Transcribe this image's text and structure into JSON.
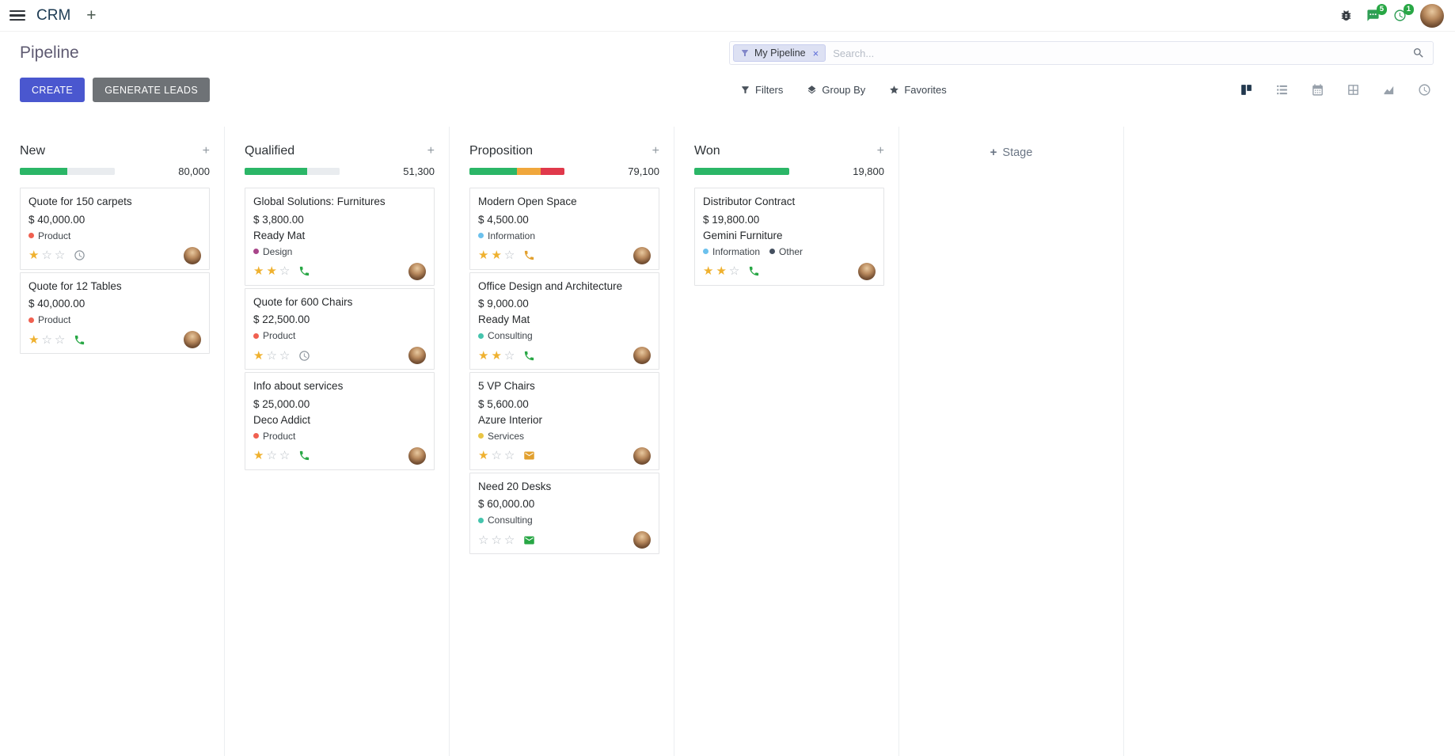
{
  "colors": {
    "primary": "#4a57cf",
    "secondary": "#6e7276",
    "success": "#28a745",
    "progress_green": "#2bb667",
    "progress_yellow": "#f0a73c",
    "progress_red": "#e0394b",
    "star_gold": "#efb12f",
    "tag_red": "#f06050",
    "tag_magenta": "#a8458a",
    "tag_blue": "#6cc1ed",
    "tag_teal": "#45c4ad",
    "tag_yellow": "#e9c546",
    "tag_dark": "#44505f",
    "facet_bg": "#dde1f3"
  },
  "icons": {
    "plus": "+",
    "close": "×",
    "star_filled": "★",
    "star_empty": "☆"
  },
  "navbar": {
    "app_name": "CRM",
    "messages_badge": "5",
    "activities_badge": "1"
  },
  "control_panel": {
    "title": "Pipeline",
    "buttons": {
      "create": "CREATE",
      "generate_leads": "GENERATE LEADS"
    },
    "search": {
      "facet_label": "My Pipeline",
      "placeholder": "Search..."
    },
    "menus": {
      "filters": "Filters",
      "group_by": "Group By",
      "favorites": "Favorites"
    }
  },
  "kanban": {
    "add_stage_label": "Stage",
    "columns": [
      {
        "name": "New",
        "count": "80,000",
        "progress": [
          {
            "color": "green",
            "pct": 50
          },
          {
            "color": "gray",
            "pct": 50
          }
        ],
        "cards": [
          {
            "title": "Quote for 150 carpets",
            "amount": "$ 40,000.00",
            "tags": [
              {
                "name": "Product",
                "color": "red"
              }
            ],
            "priority": 1,
            "activity": {
              "type": "clock",
              "state": "muted"
            }
          },
          {
            "title": "Quote for 12 Tables",
            "amount": "$ 40,000.00",
            "tags": [
              {
                "name": "Product",
                "color": "red"
              }
            ],
            "priority": 1,
            "activity": {
              "type": "phone",
              "state": "green"
            }
          }
        ]
      },
      {
        "name": "Qualified",
        "count": "51,300",
        "progress": [
          {
            "color": "green",
            "pct": 66
          },
          {
            "color": "gray",
            "pct": 34
          }
        ],
        "cards": [
          {
            "title": "Global Solutions: Furnitures",
            "amount": "$ 3,800.00",
            "partner": "Ready Mat",
            "tags": [
              {
                "name": "Design",
                "color": "magenta"
              }
            ],
            "priority": 2,
            "activity": {
              "type": "phone",
              "state": "green"
            }
          },
          {
            "title": "Quote for 600 Chairs",
            "amount": "$ 22,500.00",
            "tags": [
              {
                "name": "Product",
                "color": "red"
              }
            ],
            "priority": 1,
            "activity": {
              "type": "clock",
              "state": "muted"
            }
          },
          {
            "title": "Info about services",
            "amount": "$ 25,000.00",
            "partner": "Deco Addict",
            "tags": [
              {
                "name": "Product",
                "color": "red"
              }
            ],
            "priority": 1,
            "activity": {
              "type": "phone",
              "state": "green"
            }
          }
        ]
      },
      {
        "name": "Proposition",
        "count": "79,100",
        "progress": [
          {
            "color": "green",
            "pct": 50
          },
          {
            "color": "yellow",
            "pct": 25
          },
          {
            "color": "red",
            "pct": 25
          }
        ],
        "cards": [
          {
            "title": "Modern Open Space",
            "amount": "$ 4,500.00",
            "tags": [
              {
                "name": "Information",
                "color": "blue"
              }
            ],
            "priority": 2,
            "activity": {
              "type": "phone",
              "state": "orange"
            }
          },
          {
            "title": "Office Design and Architecture",
            "amount": "$ 9,000.00",
            "partner": "Ready Mat",
            "tags": [
              {
                "name": "Consulting",
                "color": "teal"
              }
            ],
            "priority": 2,
            "activity": {
              "type": "phone",
              "state": "green"
            }
          },
          {
            "title": "5 VP Chairs",
            "amount": "$ 5,600.00",
            "partner": "Azure Interior",
            "tags": [
              {
                "name": "Services",
                "color": "yellow"
              }
            ],
            "priority": 1,
            "activity": {
              "type": "envelope",
              "state": "orange"
            }
          },
          {
            "title": "Need 20 Desks",
            "amount": "$ 60,000.00",
            "tags": [
              {
                "name": "Consulting",
                "color": "teal"
              }
            ],
            "priority": 0,
            "activity": {
              "type": "envelope",
              "state": "green"
            }
          }
        ]
      },
      {
        "name": "Won",
        "count": "19,800",
        "progress": [
          {
            "color": "green",
            "pct": 100
          }
        ],
        "cards": [
          {
            "title": "Distributor Contract",
            "amount": "$ 19,800.00",
            "partner": "Gemini Furniture",
            "tags": [
              {
                "name": "Information",
                "color": "blue"
              },
              {
                "name": "Other",
                "color": "dark"
              }
            ],
            "priority": 2,
            "activity": {
              "type": "phone",
              "state": "green"
            }
          }
        ]
      }
    ]
  }
}
